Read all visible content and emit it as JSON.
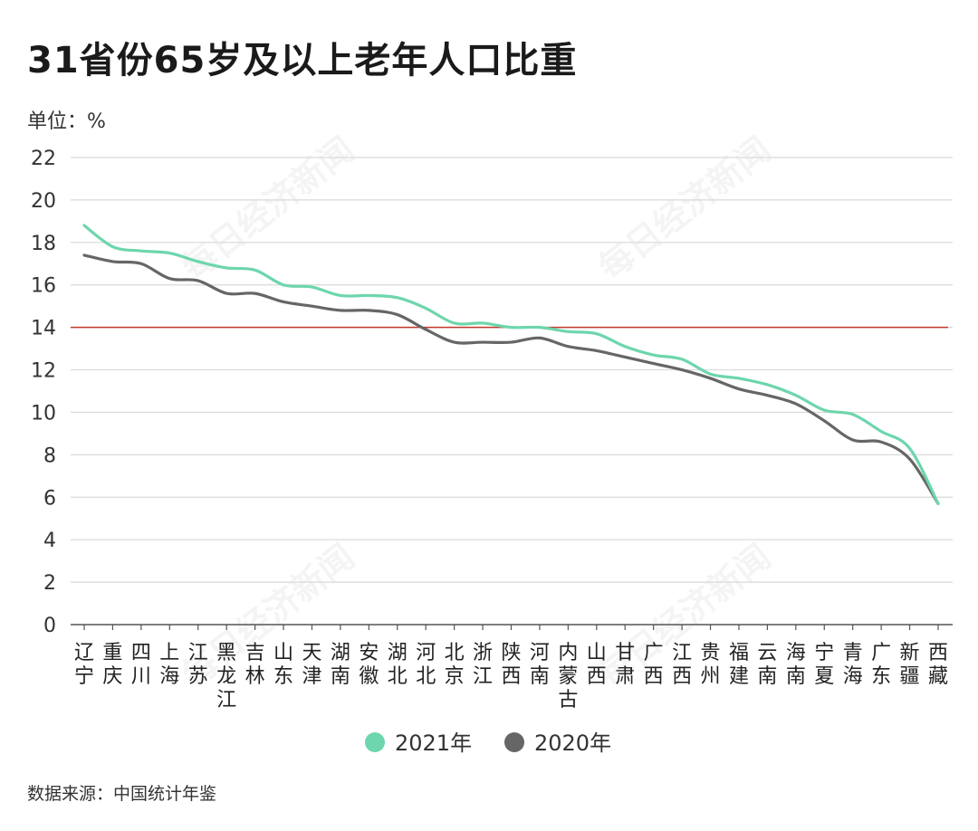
{
  "title": "31省份65岁及以上老年人口比重",
  "unit_label": "单位：%",
  "source": "数据来源：中国统计年鉴",
  "watermark": "每日经济新闻",
  "colors": {
    "series_2021": "#6dd6ac",
    "series_2020": "#666666",
    "reference_line": "#c0392b",
    "grid": "#d9d9d9"
  },
  "chart_data": {
    "type": "line",
    "title": "31省份65岁及以上老年人口比重",
    "ylabel": "单位：%",
    "xlabel": "",
    "ylim": [
      0,
      22
    ],
    "yticks": [
      0,
      2,
      4,
      6,
      8,
      10,
      12,
      14,
      16,
      18,
      20,
      22
    ],
    "grid": true,
    "legend": "bottom",
    "reference_line": 14,
    "categories": [
      [
        "辽",
        "宁"
      ],
      [
        "重",
        "庆"
      ],
      [
        "四",
        "川"
      ],
      [
        "上",
        "海"
      ],
      [
        "江",
        "苏"
      ],
      [
        "黑",
        "龙",
        "江"
      ],
      [
        "吉",
        "林"
      ],
      [
        "山",
        "东"
      ],
      [
        "天",
        "津"
      ],
      [
        "湖",
        "南"
      ],
      [
        "安",
        "徽"
      ],
      [
        "湖",
        "北"
      ],
      [
        "河",
        "北"
      ],
      [
        "北",
        "京"
      ],
      [
        "浙",
        "江"
      ],
      [
        "陕",
        "西"
      ],
      [
        "河",
        "南"
      ],
      [
        "内",
        "蒙",
        "古"
      ],
      [
        "山",
        "西"
      ],
      [
        "甘",
        "肃"
      ],
      [
        "广",
        "西"
      ],
      [
        "江",
        "西"
      ],
      [
        "贵",
        "州"
      ],
      [
        "福",
        "建"
      ],
      [
        "云",
        "南"
      ],
      [
        "海",
        "南"
      ],
      [
        "宁",
        "夏"
      ],
      [
        "青",
        "海"
      ],
      [
        "广",
        "东"
      ],
      [
        "新",
        "疆"
      ],
      [
        "西",
        "藏"
      ]
    ],
    "series": [
      {
        "name": "2021年",
        "values": [
          18.8,
          17.8,
          17.6,
          17.5,
          17.1,
          16.8,
          16.7,
          16.0,
          15.9,
          15.5,
          15.5,
          15.4,
          14.9,
          14.2,
          14.2,
          14.0,
          14.0,
          13.8,
          13.7,
          13.1,
          12.7,
          12.5,
          11.8,
          11.6,
          11.3,
          10.8,
          10.1,
          9.9,
          9.1,
          8.3,
          5.7
        ]
      },
      {
        "name": "2020年",
        "values": [
          17.4,
          17.1,
          17.0,
          16.3,
          16.2,
          15.6,
          15.6,
          15.2,
          15.0,
          14.8,
          14.8,
          14.6,
          13.9,
          13.3,
          13.3,
          13.3,
          13.5,
          13.1,
          12.9,
          12.6,
          12.3,
          12.0,
          11.6,
          11.1,
          10.8,
          10.4,
          9.6,
          8.7,
          8.6,
          7.8,
          5.7
        ]
      }
    ]
  }
}
